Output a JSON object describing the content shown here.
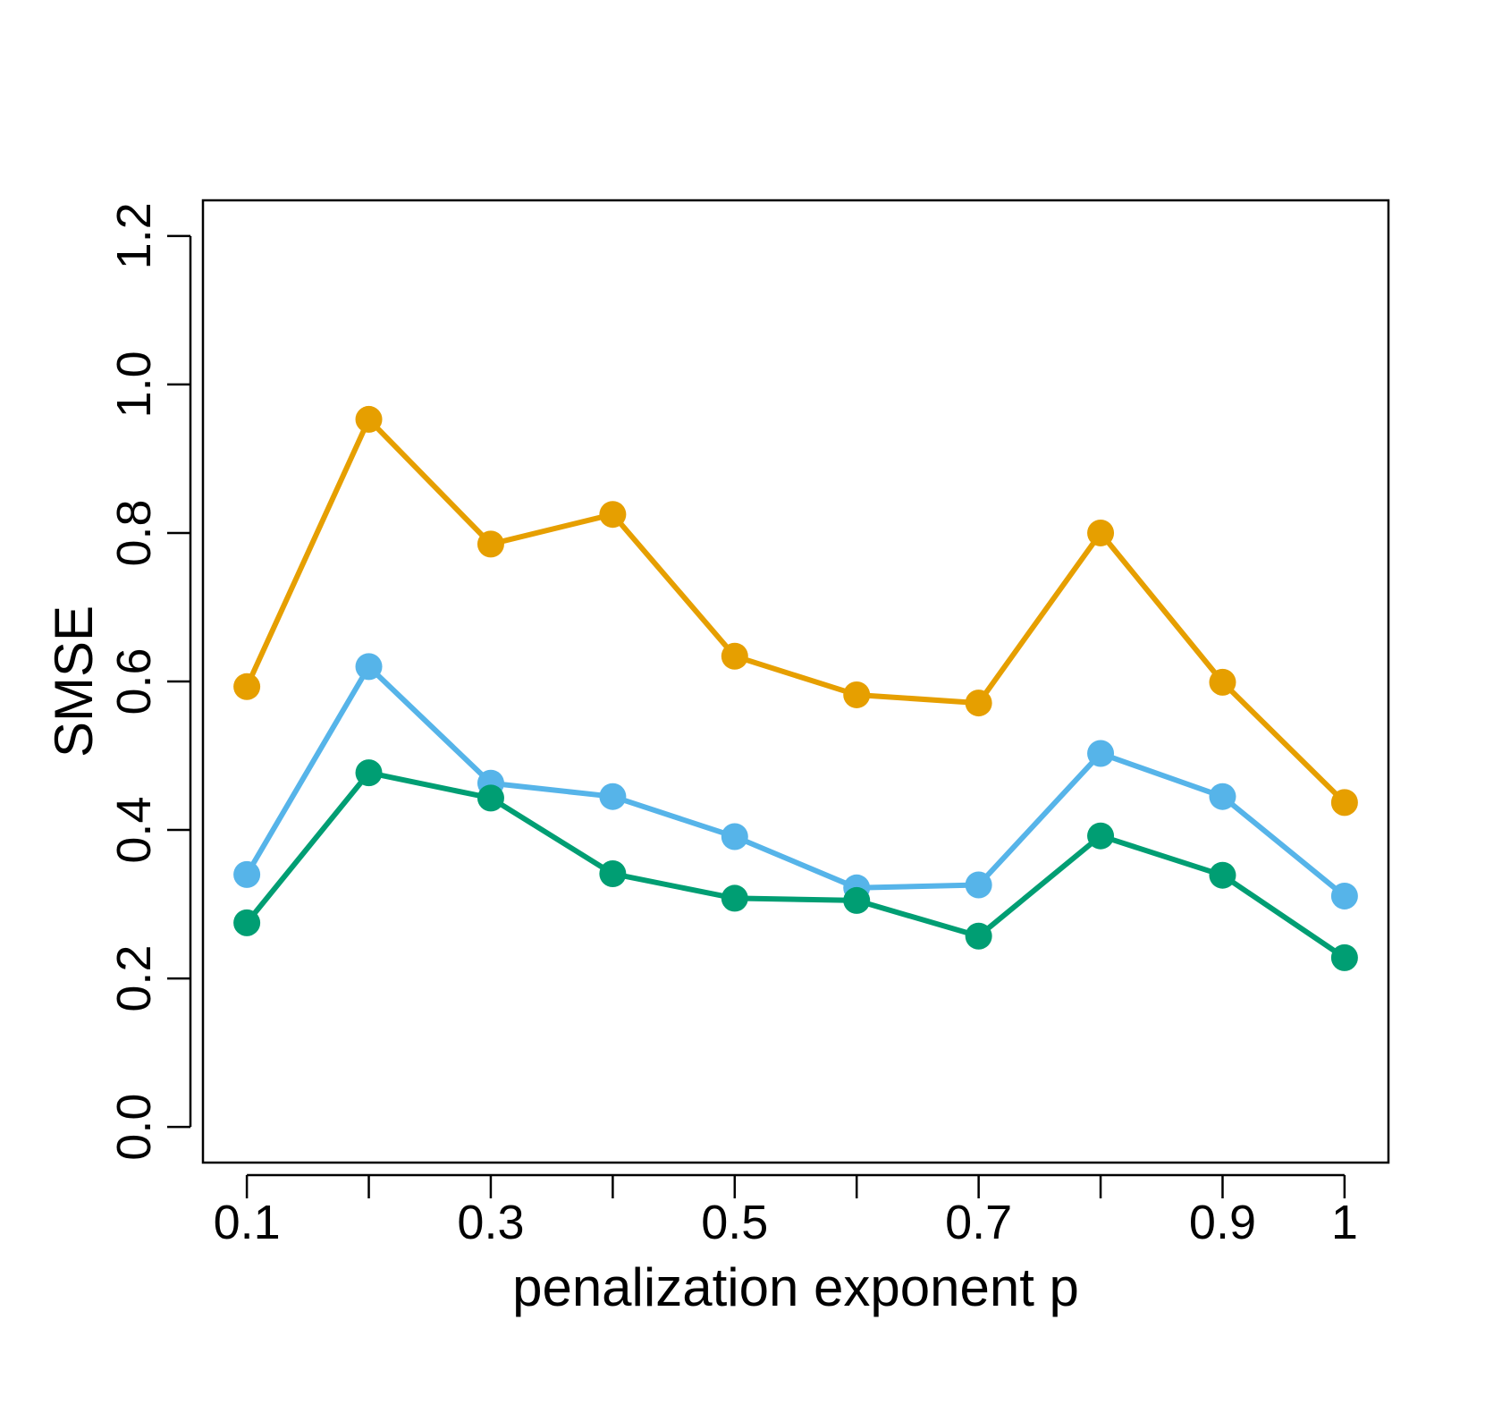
{
  "chart_data": {
    "type": "line",
    "title": "",
    "xlabel": "penalization exponent p",
    "ylabel": "SMSE",
    "x": [
      0.1,
      0.2,
      0.3,
      0.4,
      0.5,
      0.6,
      0.7,
      0.8,
      0.9,
      1.0
    ],
    "xlim": [
      0.064,
      1.036
    ],
    "ylim": [
      -0.048,
      1.248
    ],
    "x_ticks": [
      0.1,
      0.2,
      0.3,
      0.4,
      0.5,
      0.6,
      0.7,
      0.8,
      0.9,
      1.0
    ],
    "x_tick_labels": [
      "0.1",
      "",
      "0.3",
      "",
      "0.5",
      "",
      "0.7",
      "",
      "0.9",
      "1"
    ],
    "y_ticks": [
      0.0,
      0.2,
      0.4,
      0.6,
      0.8,
      1.0,
      1.2
    ],
    "y_tick_labels": [
      "0.0",
      "0.2",
      "0.4",
      "0.6",
      "0.8",
      "1.0",
      "1.2"
    ],
    "grid": false,
    "legend": null,
    "series": [
      {
        "name": "orange",
        "color": "#E69F00",
        "values": [
          0.593,
          0.953,
          0.785,
          0.825,
          0.634,
          0.582,
          0.571,
          0.8,
          0.599,
          0.437
        ]
      },
      {
        "name": "skyblue",
        "color": "#56B4E9",
        "values": [
          0.34,
          0.62,
          0.463,
          0.445,
          0.391,
          0.322,
          0.326,
          0.503,
          0.445,
          0.311
        ]
      },
      {
        "name": "green",
        "color": "#009E73",
        "values": [
          0.275,
          0.477,
          0.443,
          0.341,
          0.308,
          0.305,
          0.257,
          0.392,
          0.339,
          0.228
        ]
      }
    ]
  }
}
